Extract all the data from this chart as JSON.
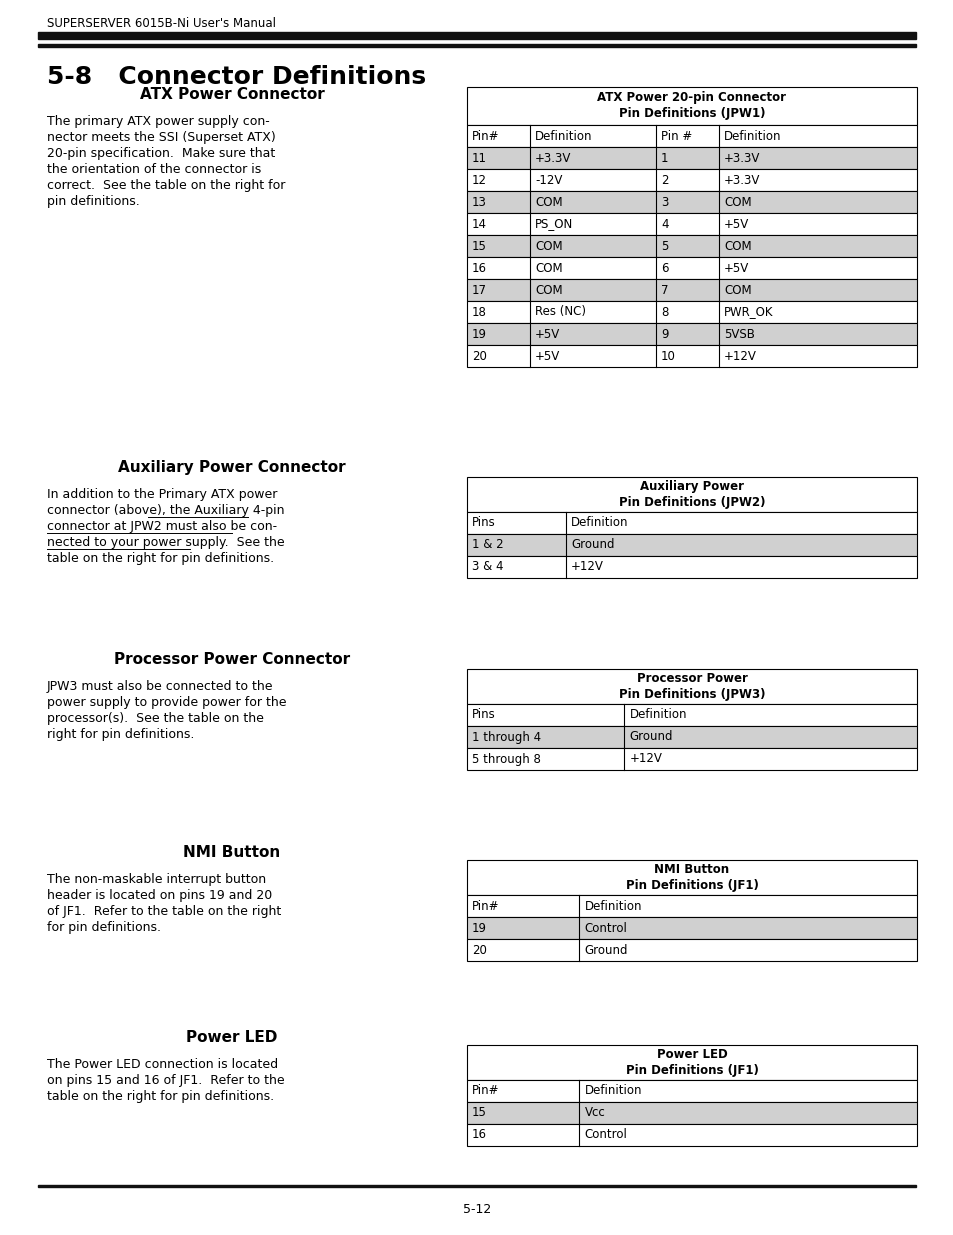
{
  "page_header": "SUPERSERVER 6015B-Ni User's Manual",
  "page_footer": "5-12",
  "section_title": "5-8   Connector Definitions",
  "background_color": "#ffffff",
  "atx_section": {
    "title": "ATX Power Connector",
    "table_title": "ATX Power 20-pin Connector\nPin Definitions (JPW1)",
    "col_headers": [
      "Pin#",
      "Definition",
      "Pin #",
      "Definition"
    ],
    "rows": [
      [
        "11",
        "+3.3V",
        "1",
        "+3.3V"
      ],
      [
        "12",
        "-12V",
        "2",
        "+3.3V"
      ],
      [
        "13",
        "COM",
        "3",
        "COM"
      ],
      [
        "14",
        "PS_ON",
        "4",
        "+5V"
      ],
      [
        "15",
        "COM",
        "5",
        "COM"
      ],
      [
        "16",
        "COM",
        "6",
        "+5V"
      ],
      [
        "17",
        "COM",
        "7",
        "COM"
      ],
      [
        "18",
        "Res (NC)",
        "8",
        "PWR_OK"
      ],
      [
        "19",
        "+5V",
        "9",
        "5VSB"
      ],
      [
        "20",
        "+5V",
        "10",
        "+12V"
      ]
    ],
    "shaded_rows": [
      0,
      2,
      4,
      6,
      8
    ],
    "text_lines": [
      "The primary ATX power supply con-",
      "nector meets the SSI (Superset ATX)",
      "20-pin specification.  Make sure that",
      "the orientation of the connector is",
      "correct.  See the table on the right for",
      "pin definitions."
    ]
  },
  "aux_section": {
    "title": "Auxiliary Power Connector",
    "table_title": "Auxiliary Power\nPin Definitions (JPW2)",
    "col_headers": [
      "Pins",
      "Definition"
    ],
    "rows": [
      [
        "1 & 2",
        "Ground"
      ],
      [
        "3 & 4",
        "+12V"
      ]
    ],
    "shaded_rows": [
      0
    ],
    "text_lines": [
      "In addition to the Primary ATX power",
      "connector (above), the Auxiliary 4-pin",
      "connector at JPW2 must also be con-",
      "nected to your power supply.  See the",
      "table on the right for pin definitions."
    ],
    "underline_segments": [
      [
        1,
        22,
        1
      ],
      [
        2,
        0,
        2
      ],
      [
        3,
        0,
        3
      ],
      [
        4,
        0,
        27
      ]
    ]
  },
  "proc_section": {
    "title": "Processor Power Connector",
    "table_title": "Processor Power\nPin Definitions (JPW3)",
    "col_headers": [
      "Pins",
      "Definition"
    ],
    "rows": [
      [
        "1 through 4",
        "Ground"
      ],
      [
        "5 through 8",
        "+12V"
      ]
    ],
    "shaded_rows": [
      0
    ],
    "text_lines": [
      "JPW3 must also be connected to the",
      "power supply to provide power for the",
      "processor(s).  See the table on the",
      "right for pin definitions."
    ]
  },
  "nmi_section": {
    "title": "NMI Button",
    "table_title": "NMI Button\nPin Definitions (JF1)",
    "col_headers": [
      "Pin#",
      "Definition"
    ],
    "rows": [
      [
        "19",
        "Control"
      ],
      [
        "20",
        "Ground"
      ]
    ],
    "shaded_rows": [
      0
    ],
    "text_lines": [
      "The non-maskable interrupt button",
      "header is located on pins 19 and 20",
      "of JF1.  Refer to the table on the right",
      "for pin definitions."
    ]
  },
  "power_led_section": {
    "title": "Power LED",
    "table_title": "Power LED\nPin Definitions (JF1)",
    "col_headers": [
      "Pin#",
      "Definition"
    ],
    "rows": [
      [
        "15",
        "Vcc"
      ],
      [
        "16",
        "Control"
      ]
    ],
    "shaded_rows": [
      0
    ],
    "text_lines": [
      "The Power LED connection is located",
      "on pins 15 and 16 of JF1.  Refer to the",
      "table on the right for pin definitions."
    ]
  },
  "shade_color": "#d0d0d0",
  "border_color": "#000000",
  "text_color": "#000000"
}
